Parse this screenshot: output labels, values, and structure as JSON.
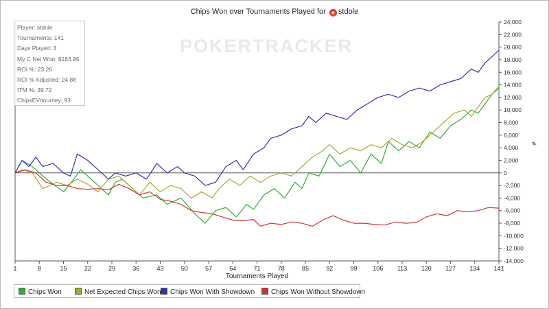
{
  "chart_title": {
    "prefix": "Chips Won over Tournaments Played for",
    "player": "stdole",
    "icon": "poker-spade-icon"
  },
  "watermark": "POKERTRACKER",
  "stats": [
    "Player: stdole",
    "Tournaments: 141",
    "Days Played: 3",
    "My C Net Won: $163.95",
    "ROI %: 23.26",
    "ROI % Adjusted: 24.88",
    "ITM %: 39.72",
    "ChipsEV/tourney: 93"
  ],
  "chart_data": {
    "type": "line",
    "xlabel": "Tournaments Played",
    "ylabel": "#",
    "xlim": [
      1,
      141
    ],
    "ylim": [
      -14000,
      24000
    ],
    "x_ticks": [
      1,
      8,
      15,
      22,
      29,
      36,
      43,
      50,
      57,
      64,
      71,
      78,
      85,
      92,
      99,
      106,
      113,
      120,
      127,
      134,
      141
    ],
    "y_ticks": [
      "24,000",
      "22,000",
      "20,000",
      "18,000",
      "16,000",
      "14,000",
      "12,000",
      "10,000",
      "8,000",
      "6,000",
      "4,000",
      "2,000",
      "0",
      "-2,000",
      "-4,000",
      "-6,000",
      "-8,000",
      "-10,000",
      "-12,000",
      "-14,000"
    ],
    "grid": false,
    "y_axis_side": "right",
    "legend_position": "bottom-left",
    "series": [
      {
        "name": "Chips Won",
        "color": "#33aa33",
        "points": [
          [
            1,
            0
          ],
          [
            3,
            2000
          ],
          [
            6,
            1000
          ],
          [
            9,
            -500
          ],
          [
            12,
            -1800
          ],
          [
            15,
            -3000
          ],
          [
            18,
            -1000
          ],
          [
            20,
            500
          ],
          [
            23,
            -1000
          ],
          [
            26,
            -2500
          ],
          [
            28,
            -3500
          ],
          [
            30,
            -1500
          ],
          [
            32,
            -1000
          ],
          [
            35,
            -2500
          ],
          [
            38,
            -4000
          ],
          [
            42,
            -3500
          ],
          [
            45,
            -5000
          ],
          [
            49,
            -4000
          ],
          [
            53,
            -6500
          ],
          [
            56,
            -8000
          ],
          [
            59,
            -6000
          ],
          [
            62,
            -5500
          ],
          [
            65,
            -7000
          ],
          [
            68,
            -5000
          ],
          [
            70,
            -5800
          ],
          [
            73,
            -3500
          ],
          [
            76,
            -2500
          ],
          [
            79,
            -4000
          ],
          [
            82,
            -1500
          ],
          [
            84,
            -2500
          ],
          [
            86,
            0
          ],
          [
            89,
            -500
          ],
          [
            92,
            3000
          ],
          [
            95,
            1000
          ],
          [
            98,
            2000
          ],
          [
            101,
            0
          ],
          [
            104,
            3000
          ],
          [
            107,
            1500
          ],
          [
            109,
            5000
          ],
          [
            112,
            3500
          ],
          [
            115,
            5000
          ],
          [
            118,
            4000
          ],
          [
            121,
            6500
          ],
          [
            124,
            5500
          ],
          [
            127,
            7500
          ],
          [
            130,
            8500
          ],
          [
            133,
            10000
          ],
          [
            135,
            9500
          ],
          [
            137,
            11000
          ],
          [
            139,
            12500
          ],
          [
            141,
            13500
          ]
        ]
      },
      {
        "name": "Net Expected Chips Won",
        "color": "#a8a832",
        "points": [
          [
            1,
            0
          ],
          [
            3,
            500
          ],
          [
            6,
            0
          ],
          [
            9,
            -2500
          ],
          [
            13,
            -1500
          ],
          [
            16,
            -2000
          ],
          [
            19,
            -1000
          ],
          [
            22,
            -1800
          ],
          [
            25,
            -3000
          ],
          [
            28,
            -1000
          ],
          [
            31,
            -500
          ],
          [
            34,
            -2000
          ],
          [
            37,
            -3500
          ],
          [
            40,
            -1500
          ],
          [
            43,
            -3000
          ],
          [
            46,
            -2000
          ],
          [
            49,
            -2500
          ],
          [
            52,
            -4000
          ],
          [
            55,
            -3000
          ],
          [
            58,
            -4000
          ],
          [
            60,
            -2500
          ],
          [
            63,
            -1000
          ],
          [
            66,
            -2000
          ],
          [
            69,
            -500
          ],
          [
            72,
            -1500
          ],
          [
            75,
            -500
          ],
          [
            78,
            0
          ],
          [
            81,
            -500
          ],
          [
            84,
            1000
          ],
          [
            87,
            2500
          ],
          [
            90,
            3500
          ],
          [
            92,
            4500
          ],
          [
            95,
            3000
          ],
          [
            98,
            4000
          ],
          [
            101,
            3500
          ],
          [
            104,
            4500
          ],
          [
            107,
            4000
          ],
          [
            110,
            5500
          ],
          [
            113,
            4500
          ],
          [
            116,
            4000
          ],
          [
            119,
            5000
          ],
          [
            122,
            6500
          ],
          [
            125,
            8000
          ],
          [
            128,
            9500
          ],
          [
            131,
            10000
          ],
          [
            133,
            9000
          ],
          [
            135,
            10500
          ],
          [
            137,
            12000
          ],
          [
            139,
            12500
          ],
          [
            141,
            13800
          ]
        ]
      },
      {
        "name": "Chips Won With Showdown",
        "color": "#3333aa",
        "points": [
          [
            1,
            0
          ],
          [
            3,
            2000
          ],
          [
            5,
            1000
          ],
          [
            7,
            2500
          ],
          [
            9,
            1000
          ],
          [
            12,
            1500
          ],
          [
            15,
            0
          ],
          [
            17,
            -500
          ],
          [
            19,
            3000
          ],
          [
            22,
            2000
          ],
          [
            25,
            500
          ],
          [
            28,
            -1000
          ],
          [
            30,
            0
          ],
          [
            33,
            -500
          ],
          [
            36,
            0
          ],
          [
            39,
            -1000
          ],
          [
            42,
            1500
          ],
          [
            45,
            0
          ],
          [
            48,
            1000
          ],
          [
            50,
            0
          ],
          [
            53,
            -500
          ],
          [
            56,
            -2000
          ],
          [
            59,
            -1500
          ],
          [
            62,
            1000
          ],
          [
            65,
            2000
          ],
          [
            67,
            500
          ],
          [
            70,
            3000
          ],
          [
            73,
            4000
          ],
          [
            75,
            5500
          ],
          [
            78,
            6000
          ],
          [
            81,
            7000
          ],
          [
            84,
            7500
          ],
          [
            86,
            9000
          ],
          [
            88,
            8000
          ],
          [
            91,
            9500
          ],
          [
            94,
            9000
          ],
          [
            97,
            8500
          ],
          [
            100,
            10000
          ],
          [
            103,
            11000
          ],
          [
            106,
            12000
          ],
          [
            109,
            12500
          ],
          [
            112,
            12000
          ],
          [
            115,
            13000
          ],
          [
            118,
            13500
          ],
          [
            121,
            13000
          ],
          [
            124,
            14000
          ],
          [
            127,
            14500
          ],
          [
            130,
            15000
          ],
          [
            133,
            16500
          ],
          [
            135,
            16000
          ],
          [
            137,
            17500
          ],
          [
            139,
            18500
          ],
          [
            141,
            19500
          ]
        ]
      },
      {
        "name": "Chips Won Without Showdown",
        "color": "#cc3333",
        "points": [
          [
            1,
            0
          ],
          [
            4,
            500
          ],
          [
            7,
            0
          ],
          [
            10,
            -1500
          ],
          [
            13,
            -2000
          ],
          [
            16,
            -2000
          ],
          [
            19,
            -2500
          ],
          [
            22,
            -2600
          ],
          [
            25,
            -2500
          ],
          [
            28,
            -2700
          ],
          [
            31,
            -1800
          ],
          [
            34,
            -2500
          ],
          [
            37,
            -3500
          ],
          [
            40,
            -3000
          ],
          [
            43,
            -4200
          ],
          [
            46,
            -4500
          ],
          [
            49,
            -5000
          ],
          [
            52,
            -6000
          ],
          [
            55,
            -6300
          ],
          [
            58,
            -6500
          ],
          [
            61,
            -7000
          ],
          [
            64,
            -7500
          ],
          [
            67,
            -7600
          ],
          [
            70,
            -7400
          ],
          [
            72,
            -8500
          ],
          [
            75,
            -8000
          ],
          [
            78,
            -8200
          ],
          [
            81,
            -7800
          ],
          [
            84,
            -8000
          ],
          [
            87,
            -8500
          ],
          [
            90,
            -7500
          ],
          [
            93,
            -6800
          ],
          [
            96,
            -7500
          ],
          [
            99,
            -8000
          ],
          [
            102,
            -8000
          ],
          [
            105,
            -8200
          ],
          [
            108,
            -8300
          ],
          [
            111,
            -7800
          ],
          [
            114,
            -8000
          ],
          [
            117,
            -7900
          ],
          [
            120,
            -7000
          ],
          [
            123,
            -6500
          ],
          [
            126,
            -6800
          ],
          [
            129,
            -6000
          ],
          [
            132,
            -6200
          ],
          [
            135,
            -6000
          ],
          [
            138,
            -5500
          ],
          [
            141,
            -5600
          ]
        ]
      }
    ]
  }
}
